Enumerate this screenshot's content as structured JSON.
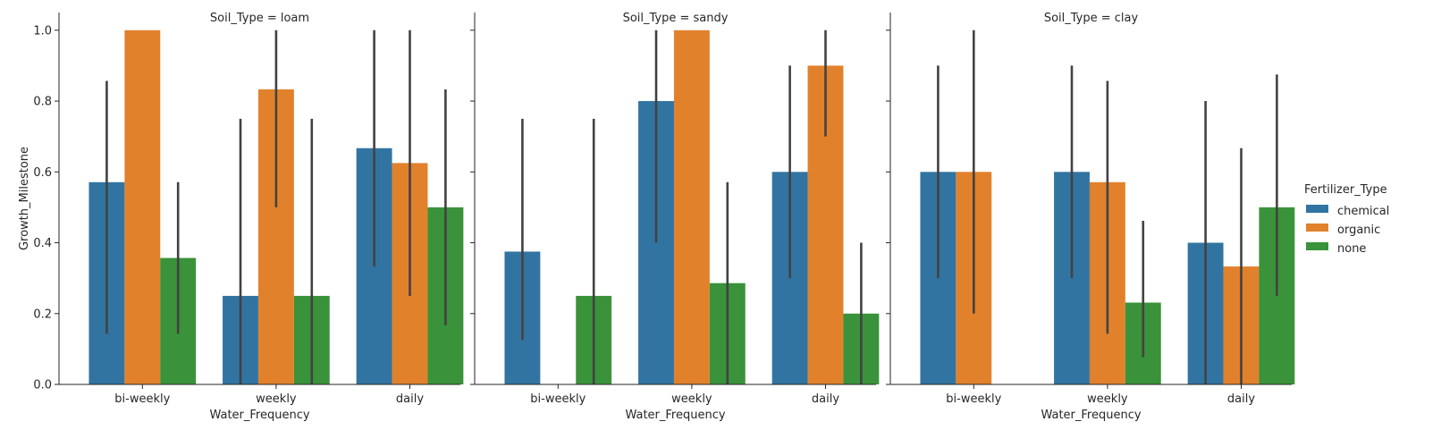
{
  "chart_data": {
    "type": "bar",
    "xlabel": "Water_Frequency",
    "ylabel": "Growth_Milestone",
    "ylim": [
      0,
      1.05
    ],
    "yticks": [
      "0.0",
      "0.2",
      "0.4",
      "0.6",
      "0.8",
      "1.0"
    ],
    "categories": [
      "bi-weekly",
      "weekly",
      "daily"
    ],
    "legend": {
      "title": "Fertilizer_Type",
      "placement": "right",
      "entries": [
        "chemical",
        "organic",
        "none"
      ]
    },
    "colors": {
      "chemical": "#3274a1",
      "organic": "#e1812c",
      "none": "#3a923a"
    },
    "facets": [
      {
        "title": "Soil_Type = loam",
        "series": [
          {
            "name": "chemical",
            "values": [
              0.571,
              0.25,
              0.667
            ],
            "ci_low": [
              0.143,
              0.0,
              0.333
            ],
            "ci_high": [
              0.857,
              0.75,
              1.0
            ]
          },
          {
            "name": "organic",
            "values": [
              1.0,
              0.833,
              0.625
            ],
            "ci_low": [
              1.0,
              0.5,
              0.25
            ],
            "ci_high": [
              1.0,
              1.0,
              1.0
            ]
          },
          {
            "name": "none",
            "values": [
              0.357,
              0.25,
              0.5
            ],
            "ci_low": [
              0.143,
              0.0,
              0.167
            ],
            "ci_high": [
              0.571,
              0.75,
              0.833
            ]
          }
        ]
      },
      {
        "title": "Soil_Type = sandy",
        "series": [
          {
            "name": "chemical",
            "values": [
              0.375,
              0.8,
              0.6
            ],
            "ci_low": [
              0.125,
              0.4,
              0.3
            ],
            "ci_high": [
              0.75,
              1.0,
              0.9
            ]
          },
          {
            "name": "organic",
            "values": [
              null,
              1.0,
              0.9
            ],
            "ci_low": [
              null,
              1.0,
              0.7
            ],
            "ci_high": [
              null,
              1.0,
              1.0
            ]
          },
          {
            "name": "none",
            "values": [
              0.25,
              0.286,
              0.2
            ],
            "ci_low": [
              0.0,
              0.0,
              0.0
            ],
            "ci_high": [
              0.75,
              0.571,
              0.4
            ]
          }
        ]
      },
      {
        "title": "Soil_Type = clay",
        "series": [
          {
            "name": "chemical",
            "values": [
              0.6,
              0.6,
              0.4
            ],
            "ci_low": [
              0.3,
              0.3,
              0.0
            ],
            "ci_high": [
              0.9,
              0.9,
              0.8
            ]
          },
          {
            "name": "organic",
            "values": [
              0.6,
              0.571,
              0.333
            ],
            "ci_low": [
              0.2,
              0.143,
              0.0
            ],
            "ci_high": [
              1.0,
              0.857,
              0.667
            ]
          },
          {
            "name": "none",
            "values": [
              null,
              0.231,
              0.5
            ],
            "ci_low": [
              null,
              0.077,
              0.25
            ],
            "ci_high": [
              null,
              0.462,
              0.875
            ]
          }
        ]
      }
    ]
  }
}
